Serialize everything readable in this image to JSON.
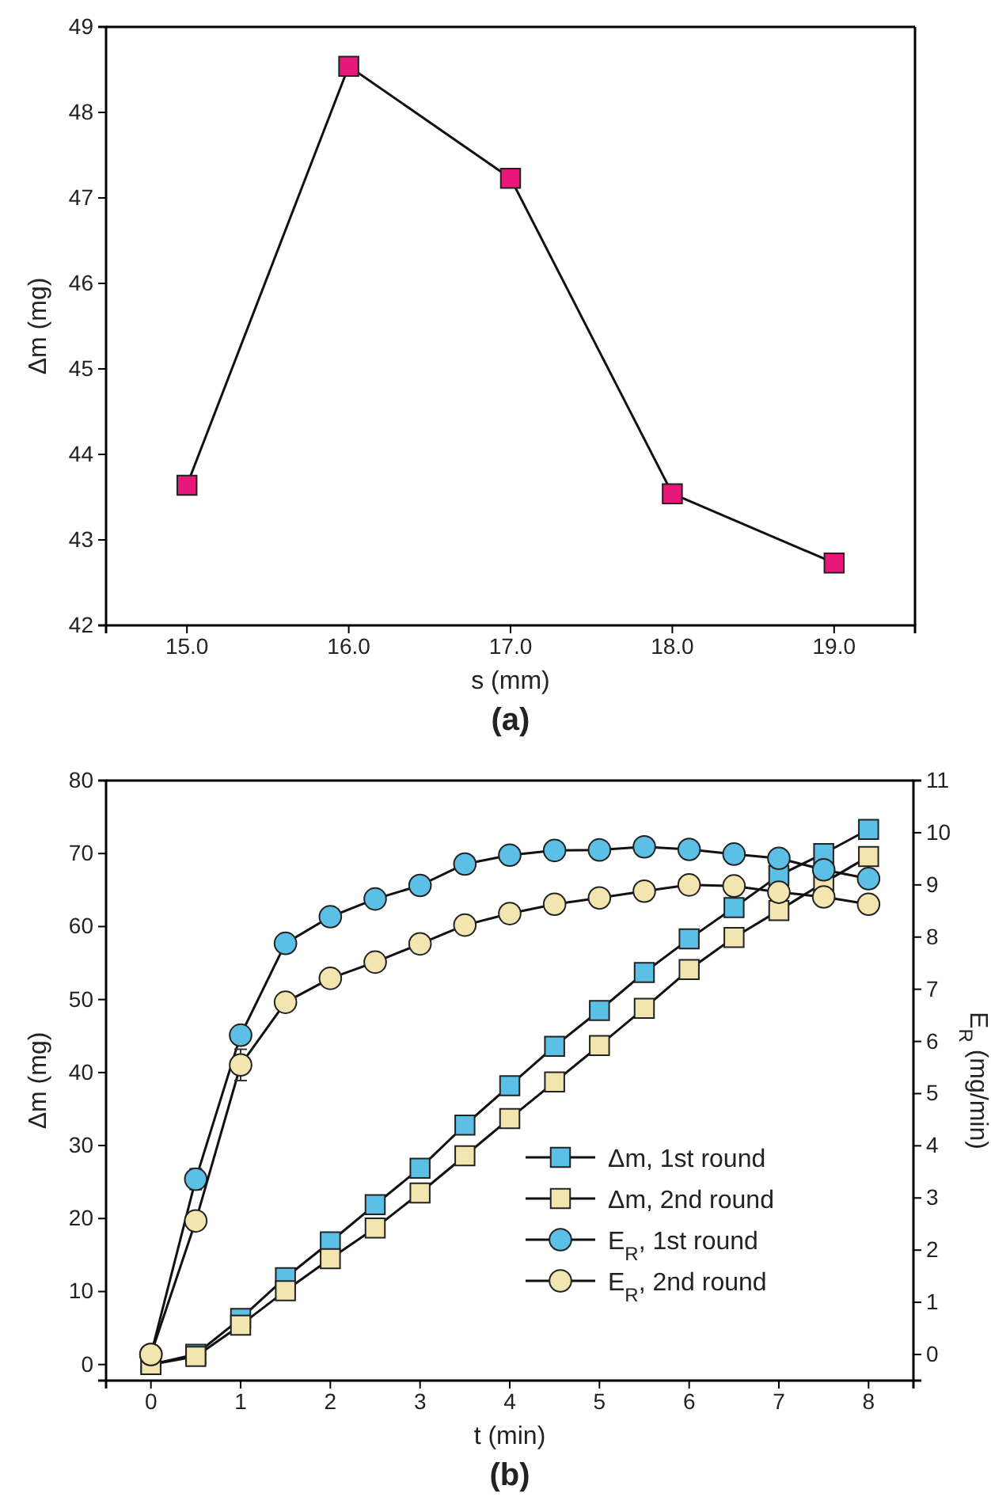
{
  "chart_data": [
    {
      "type": "line",
      "title": "(a)",
      "xlabel": "s (mm)",
      "ylabel": "Δm (mg)",
      "x": [
        15,
        16,
        17,
        18,
        19
      ],
      "marker": "square",
      "line_style": "solid",
      "grid": false,
      "legend": false,
      "xlim": [
        14.5,
        19.5
      ],
      "xticks": [
        {
          "value": 15,
          "label": "15.0"
        },
        {
          "value": 16,
          "label": "16.0"
        },
        {
          "value": 17,
          "label": "17.0"
        },
        {
          "value": 18,
          "label": "18.0"
        },
        {
          "value": 19,
          "label": "19.0"
        }
      ],
      "ylim": [
        42,
        49
      ],
      "yticks": [
        42,
        43,
        44,
        45,
        46,
        47,
        48,
        49
      ],
      "series": [
        {
          "color": "#e8177a",
          "values": [
            43.64,
            48.54,
            47.23,
            43.54,
            42.73
          ]
        }
      ]
    },
    {
      "type": "line",
      "title": "(b)",
      "xlabel": "t (min)",
      "ylabel": "Δm (mg)",
      "y2label": "E$_{R}$ (mg/min)",
      "x": [
        0,
        0.5,
        1,
        1.5,
        2,
        2.5,
        3,
        3.5,
        4,
        4.5,
        5,
        5.5,
        6,
        6.5,
        7,
        7.5,
        8
      ],
      "line_style": "solid",
      "grid": false,
      "legend": "bottom right",
      "xlim": [
        -0.5,
        8.5
      ],
      "xticks": [
        0,
        1,
        2,
        3,
        4,
        5,
        6,
        7,
        8
      ],
      "ylim": [
        -2.2,
        80
      ],
      "yticks": [
        0,
        10,
        20,
        30,
        40,
        50,
        60,
        70,
        80
      ],
      "y2lim": [
        -0.5,
        11
      ],
      "y2ticks": [
        0,
        1,
        2,
        3,
        4,
        5,
        6,
        7,
        8,
        9,
        10,
        11
      ],
      "series": [
        {
          "name": "Δm, 1st round",
          "color": "#5bbfe6",
          "marker": "square",
          "values": [
            0,
            1.4,
            6.3,
            11.9,
            16.8,
            21.9,
            26.9,
            32.8,
            38.2,
            43.6,
            48.5,
            53.7,
            58.3,
            62.6,
            67.0,
            70.0,
            73.3
          ]
        },
        {
          "name": "Δm, 2nd round",
          "color": "#f3e5b0",
          "marker": "square",
          "values": [
            0,
            1.1,
            5.4,
            10.1,
            14.5,
            18.7,
            23.5,
            28.6,
            33.7,
            38.7,
            43.7,
            48.8,
            54.1,
            58.5,
            62.2,
            66.0,
            69.6
          ]
        },
        {
          "name": "E$_{R}$, 1st round",
          "color": "#5bbfe6",
          "marker": "circle",
          "axis": "y2",
          "values": [
            0,
            3.36,
            6.12,
            7.88,
            8.39,
            8.73,
            8.99,
            9.4,
            9.57,
            9.66,
            9.67,
            9.73,
            9.68,
            9.59,
            9.51,
            9.29,
            9.12
          ],
          "errors": [
            null,
            0.2,
            null,
            null,
            null,
            null,
            null,
            null,
            null,
            null,
            null,
            null,
            null,
            null,
            null,
            null,
            null
          ]
        },
        {
          "name": "E$_{R}$, 2nd round",
          "color": "#f3e5b0",
          "marker": "circle",
          "axis": "y2",
          "values": [
            0,
            2.56,
            5.55,
            6.75,
            7.21,
            7.52,
            7.87,
            8.23,
            8.45,
            8.63,
            8.75,
            8.88,
            9.0,
            8.98,
            8.86,
            8.77,
            8.63
          ],
          "errors": [
            null,
            null,
            0.3,
            null,
            null,
            null,
            null,
            null,
            null,
            null,
            null,
            null,
            null,
            null,
            null,
            null,
            null
          ]
        }
      ]
    }
  ]
}
